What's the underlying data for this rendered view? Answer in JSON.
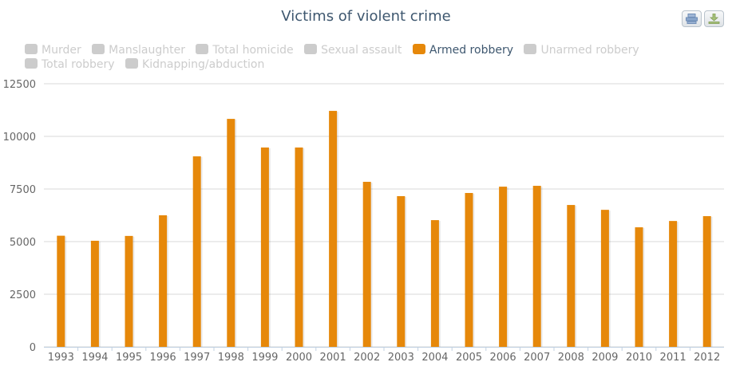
{
  "header": {
    "title": "Victims of violent crime",
    "print_button": "print-icon",
    "export_button": "download-icon"
  },
  "legend": {
    "items": [
      {
        "label": "Murder",
        "visible": false
      },
      {
        "label": "Manslaughter",
        "visible": false
      },
      {
        "label": "Total homicide",
        "visible": false
      },
      {
        "label": "Sexual assault",
        "visible": false
      },
      {
        "label": "Armed robbery",
        "visible": true
      },
      {
        "label": "Unarmed robbery",
        "visible": false
      },
      {
        "label": "Total robbery",
        "visible": false
      },
      {
        "label": "Kidnapping/abduction",
        "visible": false
      }
    ]
  },
  "colors": {
    "bar": "#e6880a",
    "hidden_legend": "#cccccc",
    "title": "#3e576f",
    "grid": "#d8d8d8"
  },
  "chart_data": {
    "type": "bar",
    "title": "Victims of violent crime",
    "xlabel": "",
    "ylabel": "",
    "categories": [
      "1993",
      "1994",
      "1995",
      "1996",
      "1997",
      "1998",
      "1999",
      "2000",
      "2001",
      "2002",
      "2003",
      "2004",
      "2005",
      "2006",
      "2007",
      "2008",
      "2009",
      "2010",
      "2011",
      "2012"
    ],
    "series": [
      {
        "name": "Armed robbery",
        "values": [
          5280,
          5040,
          5270,
          6250,
          9050,
          10830,
          9470,
          9470,
          11210,
          7840,
          7160,
          6020,
          7310,
          7610,
          7650,
          6740,
          6510,
          5680,
          5980,
          6210
        ]
      }
    ],
    "yticks": [
      "0",
      "2500",
      "5000",
      "7500",
      "10000",
      "12500"
    ],
    "ylim": [
      0,
      12500
    ],
    "grid": true,
    "legend_position": "top"
  }
}
